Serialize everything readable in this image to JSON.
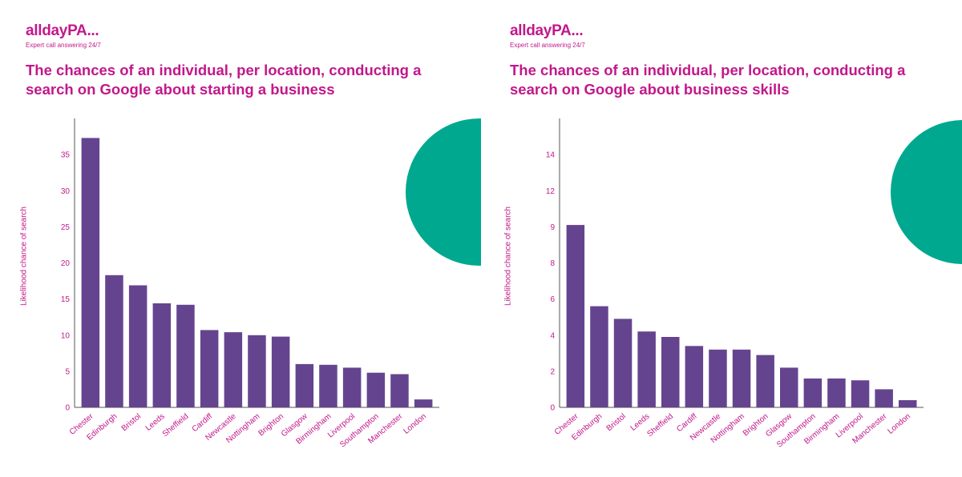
{
  "panels": [
    {
      "brand": "alldayPA...",
      "tagline": "Expert call answering 24/7",
      "title": "The chances of an individual, per location, conducting a search on Google about starting a business",
      "chart_data": {
        "type": "bar",
        "title": "The chances of an individual, per location, conducting a search on Google about starting a business",
        "ylabel": "Likelihood chance of search",
        "xlabel": "",
        "ylim": [
          0,
          40
        ],
        "yticks": [
          0,
          5,
          10,
          15,
          20,
          25,
          30,
          35
        ],
        "categories": [
          "Chester",
          "Edinburgh",
          "Bristol",
          "Leeds",
          "Sheffield",
          "Cardiff",
          "Newcastle",
          "Nottingham",
          "Brighton",
          "Glasgow",
          "Birmingham",
          "Liverpool",
          "Southampton",
          "Manchester",
          "London"
        ],
        "values": [
          37.3,
          18.3,
          16.9,
          14.4,
          14.2,
          10.7,
          10.4,
          10.0,
          9.8,
          6.0,
          5.9,
          5.5,
          4.8,
          4.6,
          1.1
        ],
        "grid": false,
        "bar_color": "#65448f"
      }
    },
    {
      "brand": "alldayPA...",
      "tagline": "Expert call answering 24/7",
      "title": "The chances of an individual, per location, conducting a search on Google about business skills",
      "chart_data": {
        "type": "bar",
        "title": "The chances of an individual, per location, conducting a search on Google about business skills",
        "ylabel": "Likelihood chance of search",
        "xlabel": "",
        "ylim": [
          0,
          16
        ],
        "yticks": [
          0,
          2,
          4,
          6,
          8,
          9,
          12,
          14
        ],
        "categories": [
          "Chester",
          "Edinburgh",
          "Bristol",
          "Leeds",
          "Sheffield",
          "Cardiff",
          "Newcastle",
          "Nottingham",
          "Brighton",
          "Glasgow",
          "Southampton",
          "Birmingham",
          "Liverpool",
          "Manchester",
          "London"
        ],
        "values": [
          10.1,
          5.6,
          4.9,
          4.2,
          3.9,
          3.4,
          3.2,
          3.2,
          2.9,
          2.2,
          1.6,
          1.6,
          1.5,
          1.0,
          0.4
        ],
        "grid": false,
        "bar_color": "#65448f"
      }
    }
  ],
  "colors": {
    "brand": "#c2188b",
    "accent": "#00a88f",
    "bar": "#65448f"
  }
}
